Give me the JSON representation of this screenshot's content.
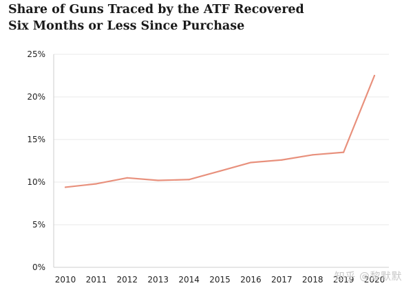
{
  "chart_data": {
    "type": "line",
    "title_line1": "Share of Guns Traced by the ATF Recovered",
    "title_line2": "Six Months or Less Since Purchase",
    "xlabel": "",
    "ylabel": "",
    "x": [
      "2010",
      "2011",
      "2012",
      "2013",
      "2014",
      "2015",
      "2016",
      "2017",
      "2018",
      "2019",
      "2020"
    ],
    "series": [
      {
        "values": [
          9.4,
          9.8,
          10.5,
          10.2,
          10.3,
          11.3,
          12.3,
          12.6,
          13.2,
          13.5,
          22.5
        ],
        "color": "#e8907c"
      }
    ],
    "ylim": [
      0,
      25
    ],
    "yticks": [
      0,
      5,
      10,
      15,
      20,
      25
    ],
    "ytick_labels": [
      "0%",
      "5%",
      "10%",
      "15%",
      "20%",
      "25%"
    ],
    "grid": true,
    "legend": "none"
  },
  "watermark": "知乎 @黎默默",
  "colors": {
    "line": "#e8907c",
    "grid": "#e9e9e9",
    "axis": "#cccccc"
  }
}
